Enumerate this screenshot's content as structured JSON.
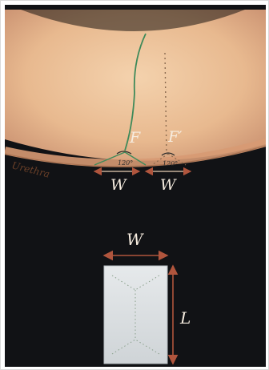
{
  "figure": {
    "upper": {
      "structure_label": "Urethra",
      "flap_left_label": "F",
      "flap_right_label": "F′",
      "angle_left": "120°",
      "angle_right": "120°",
      "width_left_label": "W",
      "width_right_label": "W"
    },
    "lower": {
      "width_label": "W",
      "length_label": "L"
    },
    "colors": {
      "background": "#111215",
      "tissue": "#e8b98f",
      "urethra_band": "#d79a73",
      "incision_line": "#3f8a5a",
      "marked_line": "#8a6a4f",
      "graft": "#dfe2e4",
      "arrow": "#b0553d",
      "label": "#f6ecdf"
    }
  }
}
